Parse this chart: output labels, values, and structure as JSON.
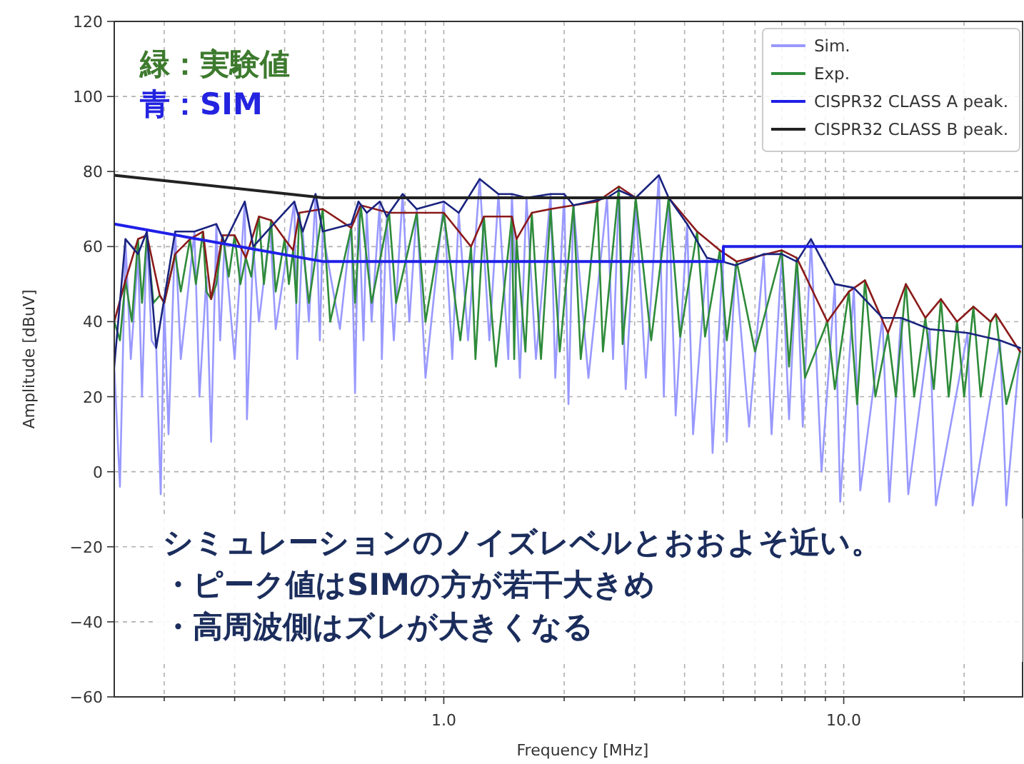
{
  "chart_data": {
    "type": "line",
    "xlabel": "Frequency [MHz]",
    "ylabel": "Amplitude [dBuV]",
    "annotations": [
      "緑：実験値",
      "青：SIM",
      "シミュレーションのノイズレベルとおおよそ近い。",
      "・ピーク値はSIMの方が若干大きめ",
      "・高周波側はズレが大きくなる"
    ],
    "log": "x",
    "grid": true,
    "legend": "top right",
    "xlim": [
      0.15,
      28
    ],
    "ylim": [
      -60,
      120
    ],
    "xticks": [
      {
        "value": 0.2,
        "label": null
      },
      {
        "value": 0.3,
        "label": null
      },
      {
        "value": 0.4,
        "label": null
      },
      {
        "value": 0.5,
        "label": null
      },
      {
        "value": 0.6,
        "label": null
      },
      {
        "value": 0.7,
        "label": null
      },
      {
        "value": 0.8,
        "label": null
      },
      {
        "value": 0.9,
        "label": null
      },
      {
        "value": 1,
        "label": "1.0"
      },
      {
        "value": 2,
        "label": null
      },
      {
        "value": 3,
        "label": null
      },
      {
        "value": 4,
        "label": null
      },
      {
        "value": 5,
        "label": null
      },
      {
        "value": 6,
        "label": null
      },
      {
        "value": 7,
        "label": null
      },
      {
        "value": 8,
        "label": null
      },
      {
        "value": 9,
        "label": null
      },
      {
        "value": 10,
        "label": "10.0"
      },
      {
        "value": 20,
        "label": null
      }
    ],
    "yticks": [
      -60,
      -40,
      -20,
      0,
      20,
      40,
      60,
      80,
      100,
      120
    ],
    "series": [
      {
        "name": "Sim.",
        "color": "#9999ff",
        "x": [
          0.15,
          0.155,
          0.16,
          0.165,
          0.172,
          0.176,
          0.181,
          0.186,
          0.191,
          0.196,
          0.2,
          0.205,
          0.213,
          0.22,
          0.238,
          0.245,
          0.255,
          0.262,
          0.27,
          0.276,
          0.283,
          0.3,
          0.318,
          0.322,
          0.334,
          0.345,
          0.368,
          0.38,
          0.423,
          0.43,
          0.444,
          0.46,
          0.478,
          0.49,
          0.498,
          0.55,
          0.587,
          0.6,
          0.612,
          0.63,
          0.642,
          0.66,
          0.692,
          0.7,
          0.72,
          0.75,
          0.789,
          0.82,
          0.856,
          0.9,
          1.0,
          1.05,
          1.09,
          1.15,
          1.23,
          1.3,
          1.37,
          1.45,
          1.48,
          1.55,
          1.61,
          1.7,
          1.85,
          1.9,
          2.0,
          2.05,
          2.11,
          2.3,
          2.56,
          2.65,
          2.74,
          2.85,
          3.02,
          3.2,
          3.45,
          3.55,
          3.65,
          3.8,
          4.06,
          4.2,
          4.55,
          4.7,
          4.98,
          5.1,
          5.36,
          5.8,
          6.31,
          6.6,
          7.0,
          7.3,
          7.63,
          7.9,
          8.28,
          8.8,
          9.5,
          9.8,
          10.6,
          11,
          12.5,
          13,
          13.9,
          14.5,
          16.4,
          17,
          20.4,
          21,
          24.6,
          25.5,
          27.6
        ],
        "values": [
          28,
          -4,
          62,
          30,
          58,
          20,
          64,
          35,
          33,
          -6,
          45,
          10,
          64,
          30,
          64,
          20,
          52,
          8,
          66,
          35,
          61,
          30,
          72,
          14,
          60,
          40,
          65,
          38,
          72,
          30,
          64,
          40,
          74,
          35,
          64,
          38,
          66,
          21,
          72,
          35,
          69,
          40,
          72,
          30,
          68,
          35,
          74,
          40,
          70,
          25,
          72,
          30,
          69,
          35,
          78,
          35,
          74,
          30,
          74,
          25,
          73,
          30,
          74,
          25,
          74,
          18,
          71,
          25,
          73,
          30,
          75,
          22,
          71,
          25,
          79,
          20,
          73,
          15,
          66,
          10,
          57,
          5,
          56,
          8,
          55,
          12,
          58,
          10,
          58,
          14,
          56,
          12,
          62,
          0,
          50,
          -8,
          49,
          -5,
          41,
          -8,
          41,
          -6,
          38,
          -9,
          37,
          -9,
          35,
          -9,
          33
        ]
      },
      {
        "name": "Exp.",
        "color": "#2e8b3a",
        "x": [
          0.15,
          0.155,
          0.16,
          0.166,
          0.172,
          0.176,
          0.181,
          0.188,
          0.195,
          0.2,
          0.213,
          0.22,
          0.232,
          0.24,
          0.25,
          0.255,
          0.262,
          0.27,
          0.28,
          0.29,
          0.3,
          0.31,
          0.32,
          0.33,
          0.345,
          0.355,
          0.37,
          0.38,
          0.4,
          0.41,
          0.42,
          0.428,
          0.435,
          0.46,
          0.498,
          0.52,
          0.587,
          0.6,
          0.62,
          0.66,
          0.73,
          0.76,
          0.856,
          0.9,
          1.0,
          1.1,
          1.17,
          1.2,
          1.26,
          1.35,
          1.48,
          1.5,
          1.52,
          1.6,
          1.66,
          1.75,
          1.85,
          1.95,
          2.11,
          2.2,
          2.42,
          2.5,
          2.74,
          2.8,
          3.02,
          3.3,
          3.65,
          3.9,
          4.3,
          4.5,
          4.9,
          5.1,
          5.4,
          6.0,
          7.0,
          7.3,
          7.63,
          8.0,
          9.1,
          9.5,
          10.3,
          10.8,
          11.3,
          12,
          12.9,
          13.5,
          14.3,
          15,
          16,
          16.8,
          17.5,
          18.3,
          19.2,
          20,
          21.1,
          22,
          23.3,
          24,
          25.5,
          27.6
        ],
        "values": [
          40,
          35,
          51,
          40,
          62,
          45,
          63,
          45,
          47,
          45,
          58,
          48,
          62,
          50,
          64,
          48,
          46,
          50,
          63,
          52,
          63,
          50,
          57,
          52,
          68,
          50,
          67,
          48,
          62,
          50,
          59,
          45,
          69,
          45,
          70,
          40,
          65,
          45,
          71,
          45,
          69,
          45,
          69,
          40,
          69,
          35,
          60,
          30,
          68,
          28,
          68,
          30,
          62,
          32,
          69,
          30,
          70,
          32,
          71,
          30,
          72,
          32,
          76,
          34,
          73,
          35,
          73,
          36,
          64,
          36,
          59,
          35,
          56,
          32,
          59,
          28,
          57,
          25,
          40,
          22,
          48,
          18,
          51,
          20,
          37,
          20,
          50,
          20,
          41,
          22,
          46,
          20,
          40,
          20,
          44,
          20,
          40,
          42,
          18,
          32
        ]
      },
      {
        "color": "#8b1a1a",
        "x": [
          0.15,
          0.16,
          0.172,
          0.181,
          0.195,
          0.2,
          0.213,
          0.232,
          0.25,
          0.262,
          0.28,
          0.3,
          0.32,
          0.345,
          0.37,
          0.4,
          0.42,
          0.435,
          0.498,
          0.587,
          0.62,
          0.73,
          0.856,
          1.0,
          1.17,
          1.26,
          1.48,
          1.52,
          1.66,
          1.85,
          2.11,
          2.42,
          2.74,
          3.02,
          3.65,
          4.3,
          4.9,
          5.4,
          7.0,
          7.63,
          9.1,
          10.3,
          11.3,
          12.9,
          14.3,
          16,
          17.5,
          19.2,
          21.1,
          23.3,
          24,
          27.6
        ],
        "values": [
          40,
          51,
          62,
          63,
          47,
          45,
          58,
          62,
          64,
          46,
          63,
          63,
          57,
          68,
          67,
          62,
          59,
          69,
          70,
          65,
          71,
          69,
          69,
          69,
          60,
          68,
          68,
          62,
          69,
          70,
          71,
          72,
          76,
          73,
          73,
          64,
          59,
          56,
          59,
          57,
          40,
          48,
          51,
          37,
          50,
          41,
          46,
          40,
          44,
          40,
          42,
          32
        ]
      },
      {
        "color": "#1a237e",
        "x": [
          0.15,
          0.16,
          0.172,
          0.181,
          0.191,
          0.213,
          0.238,
          0.27,
          0.283,
          0.318,
          0.334,
          0.368,
          0.423,
          0.444,
          0.478,
          0.498,
          0.587,
          0.612,
          0.642,
          0.692,
          0.72,
          0.789,
          0.856,
          1.0,
          1.09,
          1.23,
          1.37,
          1.48,
          1.61,
          1.85,
          2.0,
          2.11,
          2.56,
          2.74,
          3.02,
          3.45,
          3.65,
          4.06,
          4.55,
          4.98,
          5.36,
          6.31,
          7.0,
          7.63,
          8.28,
          9.5,
          10.6,
          12.5,
          13.9,
          16.4,
          20.4,
          24.6,
          27.6
        ],
        "values": [
          28,
          62,
          58,
          64,
          33,
          64,
          64,
          66,
          61,
          72,
          60,
          65,
          72,
          64,
          74,
          64,
          66,
          72,
          69,
          72,
          68,
          74,
          70,
          72,
          69,
          78,
          74,
          74,
          73,
          74,
          74,
          71,
          73,
          75,
          73,
          79,
          73,
          66,
          57,
          56,
          55,
          58,
          58,
          56,
          62,
          50,
          49,
          41,
          41,
          38,
          37,
          35,
          33
        ]
      },
      {
        "name": "CISPR32 CLASS A peak.",
        "color": "#1f1fe8",
        "x": [
          0.15,
          0.5,
          5,
          5,
          28
        ],
        "values": [
          66,
          56,
          56,
          60,
          60
        ]
      },
      {
        "name": "CISPR32 CLASS B peak.",
        "color": "#222222",
        "x": [
          0.15,
          0.5,
          28
        ],
        "values": [
          79,
          73,
          73
        ]
      }
    ]
  }
}
